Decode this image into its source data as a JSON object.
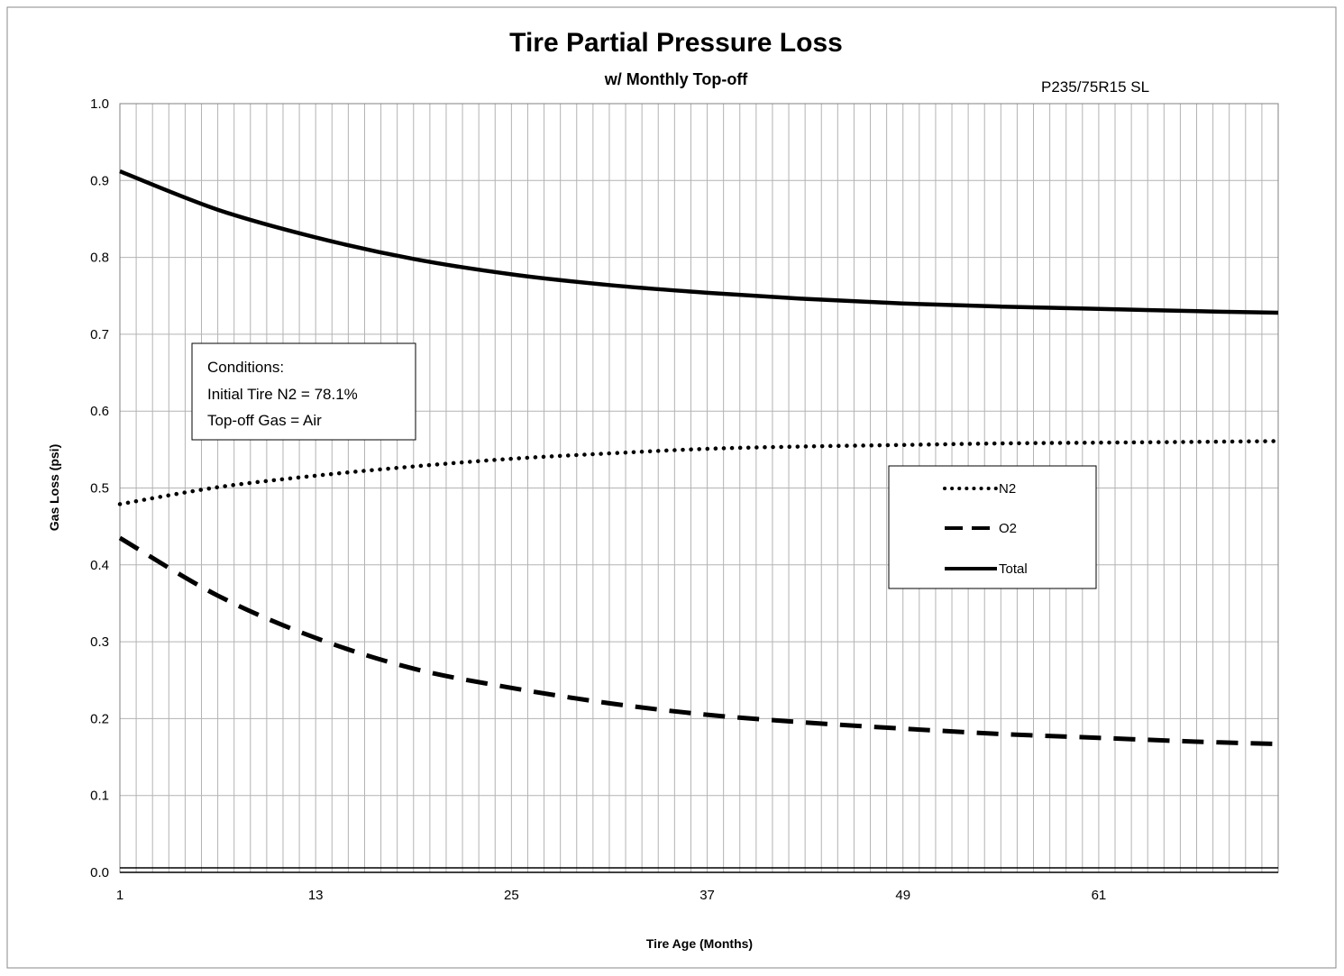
{
  "chart_data": {
    "type": "line",
    "title": "Tire Partial Pressure Loss",
    "subtitle": "w/ Monthly Top-off",
    "tire_size": "P235/75R15 SL",
    "xlabel": "Tire Age (Months)",
    "ylabel": "Gas Loss (psi)",
    "xlim": [
      1,
      72
    ],
    "ylim": [
      0,
      1.0
    ],
    "x_ticks": [
      1,
      13,
      25,
      37,
      49,
      61
    ],
    "y_ticks": [
      "0.0",
      "0.1",
      "0.2",
      "0.3",
      "0.4",
      "0.5",
      "0.6",
      "0.7",
      "0.8",
      "0.9",
      "1.0"
    ],
    "grid": true,
    "legend_position": "right",
    "conditions": {
      "heading": "Conditions:",
      "line1": "Initial Tire N2 = 78.1%",
      "line2": "Top-off Gas = Air"
    },
    "x": [
      1,
      7,
      13,
      19,
      25,
      31,
      37,
      43,
      49,
      55,
      61,
      67,
      72
    ],
    "series": [
      {
        "name": "N2",
        "style": "dotted",
        "values": [
          0.479,
          0.501,
          0.516,
          0.528,
          0.538,
          0.545,
          0.551,
          0.554,
          0.556,
          0.558,
          0.559,
          0.56,
          0.561
        ]
      },
      {
        "name": "O2",
        "style": "dashed",
        "values": [
          0.435,
          0.36,
          0.305,
          0.265,
          0.24,
          0.22,
          0.205,
          0.195,
          0.187,
          0.18,
          0.175,
          0.17,
          0.167
        ]
      },
      {
        "name": "Total",
        "style": "solid",
        "values": [
          0.912,
          0.862,
          0.826,
          0.798,
          0.778,
          0.764,
          0.754,
          0.746,
          0.74,
          0.736,
          0.733,
          0.73,
          0.728
        ]
      }
    ],
    "colors": {
      "line": "#000000",
      "grid": "#b3b3b3",
      "background": "#ffffff"
    }
  }
}
